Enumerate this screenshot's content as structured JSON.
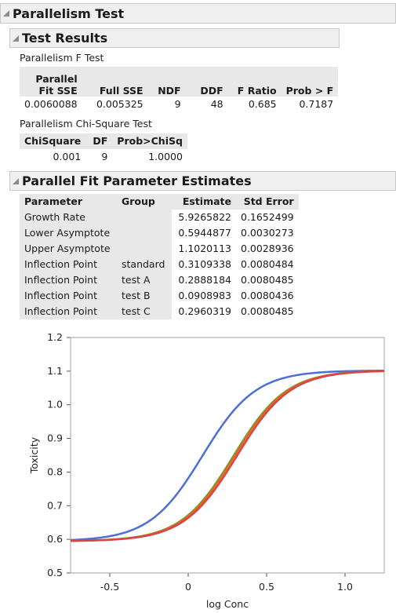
{
  "title": "Parallelism Test",
  "test_results": {
    "title": "Test Results",
    "f_test": {
      "label": "Parallelism F Test",
      "headers": [
        "Parallel Fit SSE",
        "Full SSE",
        "NDF",
        "DDF",
        "F Ratio",
        "Prob > F"
      ],
      "header_line1": "Parallel",
      "header_line2": "Fit SSE",
      "row": [
        "0.0060088",
        "0.005325",
        "9",
        "48",
        "0.685",
        "0.7187"
      ]
    },
    "chi_test": {
      "label": "Parallelism Chi-Square Test",
      "headers": [
        "ChiSquare",
        "DF",
        "Prob>ChiSq"
      ],
      "row": [
        "0.001",
        "9",
        "1.0000"
      ]
    }
  },
  "estimates": {
    "title": "Parallel Fit Parameter Estimates",
    "headers": [
      "Parameter",
      "Group",
      "Estimate",
      "Std Error"
    ],
    "rows": [
      [
        "Growth Rate",
        "",
        "5.9265822",
        "0.1652499"
      ],
      [
        "Lower Asymptote",
        "",
        "0.5944877",
        "0.0030273"
      ],
      [
        "Upper Asymptote",
        "",
        "1.1020113",
        "0.0028936"
      ],
      [
        "Inflection Point",
        "standard",
        "0.3109338",
        "0.0080484"
      ],
      [
        "Inflection Point",
        "test A",
        "0.2888184",
        "0.0080485"
      ],
      [
        "Inflection Point",
        "test B",
        "0.0908983",
        "0.0080436"
      ],
      [
        "Inflection Point",
        "test C",
        "0.2960319",
        "0.0080485"
      ]
    ]
  },
  "chart_data": {
    "type": "line",
    "xlabel": "log Conc",
    "ylabel": "Toxicity",
    "xlim": [
      -0.75,
      1.25
    ],
    "ylim": [
      0.5,
      1.2
    ],
    "xticks": [
      "-0.5",
      "0",
      "0.5",
      "1.0"
    ],
    "yticks": [
      "0.5",
      "0.6",
      "0.7",
      "0.8",
      "0.9",
      "1.0",
      "1.1",
      "1.2"
    ],
    "grid": false,
    "model": {
      "growth_rate": 5.9265822,
      "lower": 0.5944877,
      "upper": 1.1020113
    },
    "series": [
      {
        "inflection": 0.0908983,
        "color": "#4a6fd6"
      },
      {
        "inflection": 0.2888184,
        "color": "#5aa83a"
      },
      {
        "inflection": 0.2960319,
        "color": "#e06a1b"
      },
      {
        "inflection": 0.3109338,
        "color": "#d94545"
      }
    ]
  }
}
